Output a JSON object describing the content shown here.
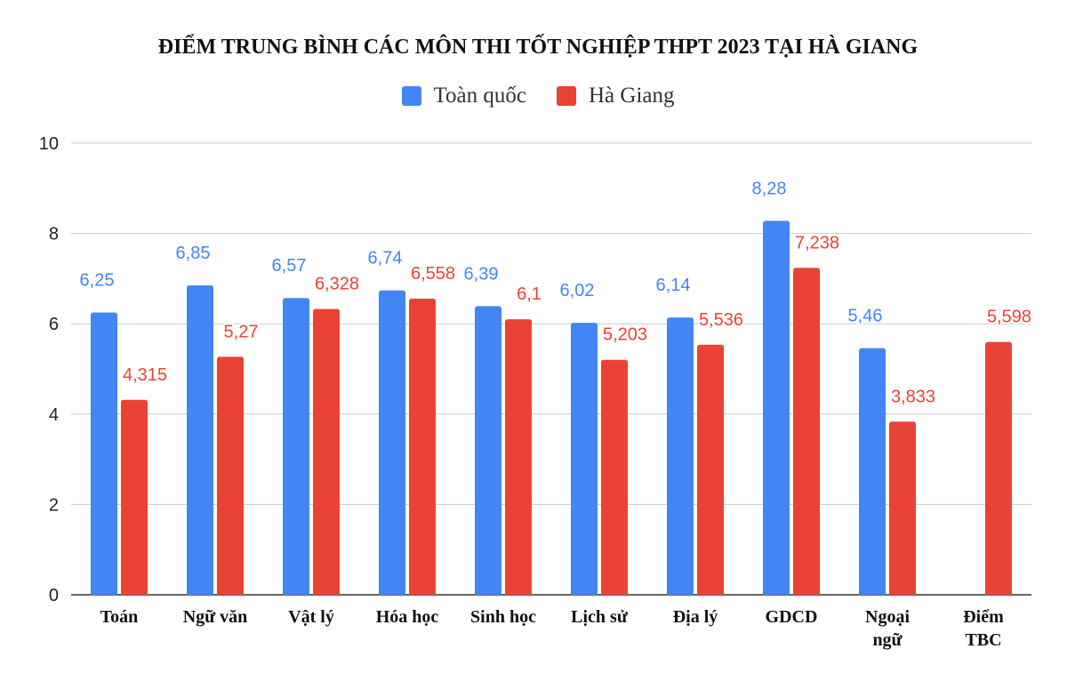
{
  "chart_data": {
    "type": "bar",
    "title": "ĐIỂM TRUNG BÌNH CÁC MÔN THI TỐT NGHIỆP THPT 2023 TẠI HÀ GIANG",
    "categories": [
      [
        "Toán"
      ],
      [
        "Ngữ văn"
      ],
      [
        "Vật lý"
      ],
      [
        "Hóa học"
      ],
      [
        "Sinh học"
      ],
      [
        "Lịch sử"
      ],
      [
        "Địa lý"
      ],
      [
        "GDCD"
      ],
      [
        "Ngoại",
        "ngữ"
      ],
      [
        "Điểm",
        "TBC"
      ]
    ],
    "series": [
      {
        "name": "Toàn quốc",
        "color": "#4285f4",
        "values": [
          6.25,
          6.85,
          6.57,
          6.74,
          6.39,
          6.02,
          6.14,
          8.28,
          5.46,
          null
        ],
        "labels": [
          "6,25",
          "6,85",
          "6,57",
          "6,74",
          "6,39",
          "6,02",
          "6,14",
          "8,28",
          "5,46",
          ""
        ]
      },
      {
        "name": "Hà Giang",
        "color": "#ea4335",
        "values": [
          4.315,
          5.27,
          6.328,
          6.558,
          6.1,
          5.203,
          5.536,
          7.238,
          3.833,
          5.598
        ],
        "labels": [
          "4,315",
          "5,27",
          "6,328",
          "6,558",
          "6,1",
          "5,203",
          "5,536",
          "7,238",
          "3,833",
          "5,598"
        ]
      }
    ],
    "ylim": [
      0,
      10
    ],
    "yticks": [
      0,
      2,
      4,
      6,
      8,
      10
    ],
    "grid": true,
    "legend": "top-center",
    "xlabel": "",
    "ylabel": ""
  }
}
